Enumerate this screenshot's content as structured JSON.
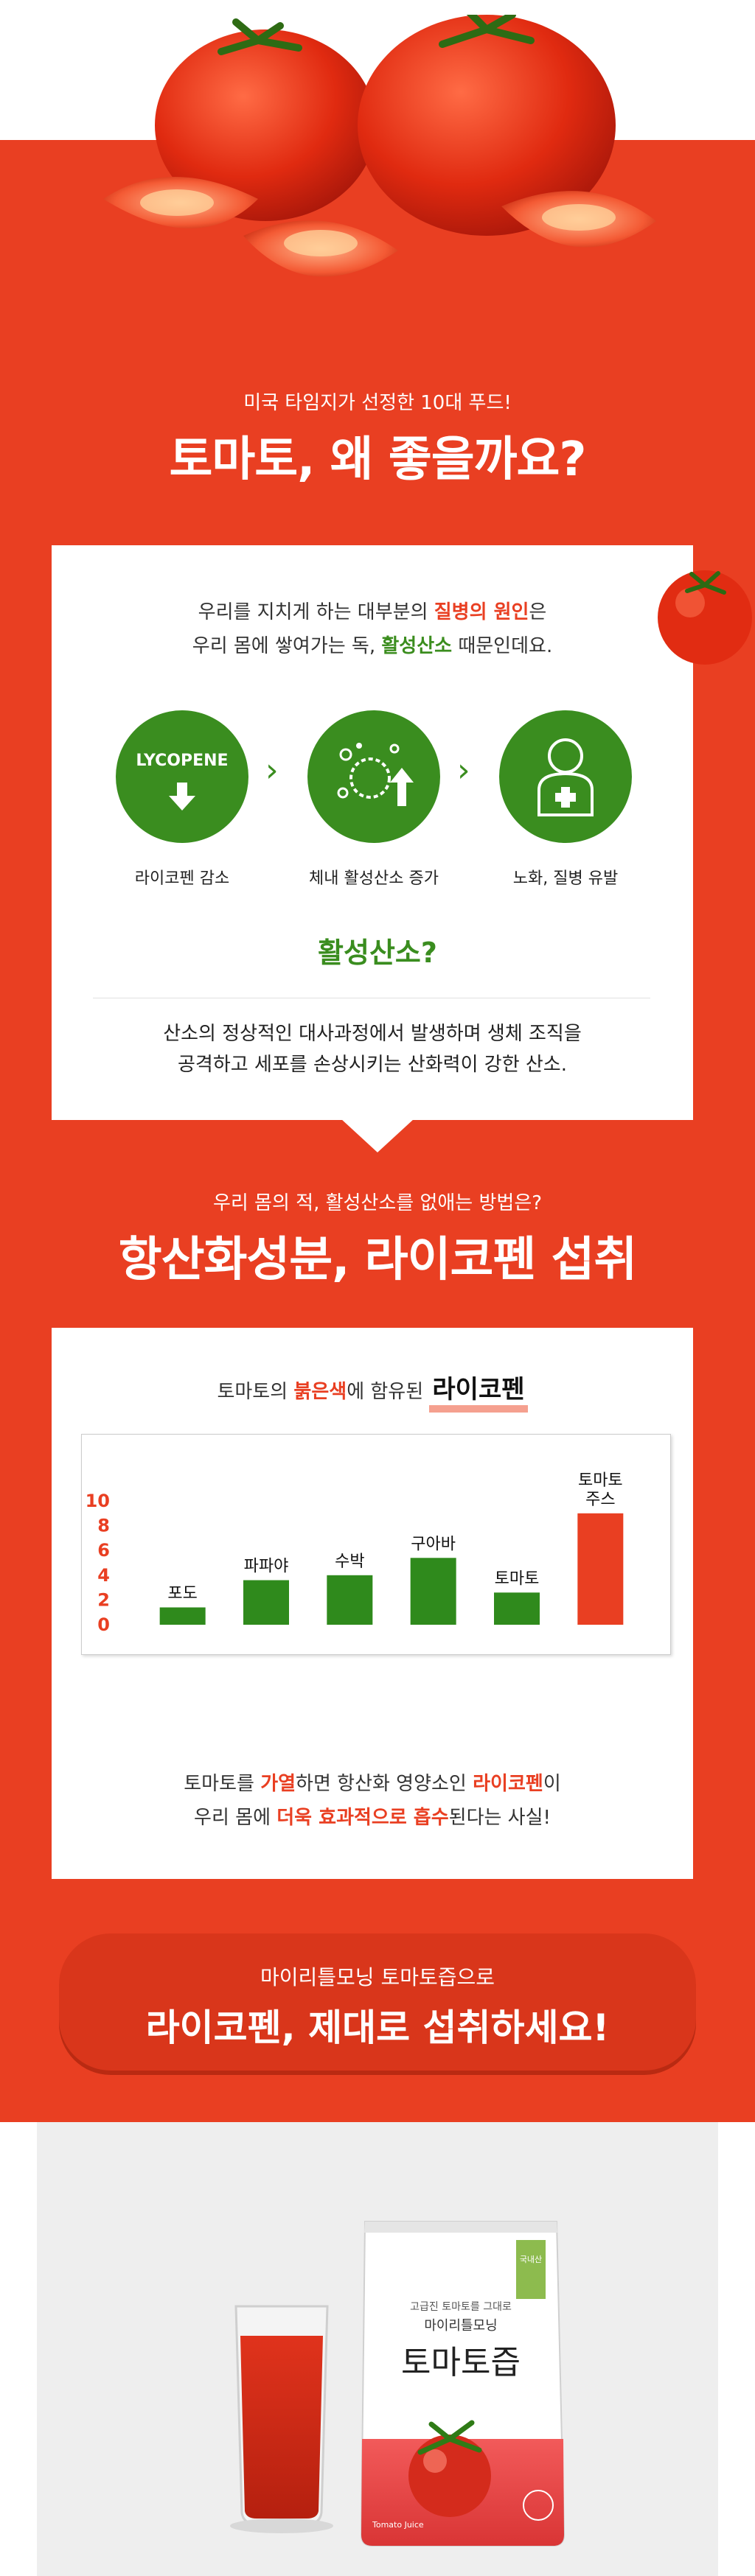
{
  "hero": {
    "kicker": "미국 타임지가 선정한 10대 푸드!",
    "headline": "토마토, 왜 좋을까요?"
  },
  "intro": {
    "line1_pre": "우리를 지치게 하는 대부분의 ",
    "line1_hl": "질병의 원인",
    "line1_post": "은",
    "line2_pre": "우리 몸에 쌓여가는 독, ",
    "line2_hl": "활성산소",
    "line2_post": " 때문인데요."
  },
  "steps": [
    {
      "icon_text": "LYCOPENE",
      "label": "라이코펜 감소"
    },
    {
      "label": "체내 활성산소 증가"
    },
    {
      "label": "노화, 질병 유발"
    }
  ],
  "ros": {
    "title": "활성산소?",
    "line1": "산소의 정상적인 대사과정에서 발생하며 생체 조직을",
    "line2": "공격하고 세포를 손상시키는 산화력이 강한 산소."
  },
  "section2": {
    "kicker": "우리 몸의 적, 활성산소를 없애는 방법은?",
    "headline": "항산화성분, 라이코펜 섭취"
  },
  "lyco": {
    "pre": "토마토의 ",
    "hl": "붉은색",
    "post": "에 함유된 ",
    "tag": "라이코펜"
  },
  "chart_data": {
    "type": "bar",
    "categories": [
      "포도",
      "파파야",
      "수박",
      "구아바",
      "토마토",
      "토마토 주스"
    ],
    "category_lines": [
      [
        "포도"
      ],
      [
        "파파야"
      ],
      [
        "수박"
      ],
      [
        "구아바"
      ],
      [
        "토마토"
      ],
      [
        "토마토",
        "주스"
      ]
    ],
    "values": [
      1.4,
      3.6,
      4.0,
      5.4,
      2.6,
      9.0
    ],
    "yticks": [
      "0",
      "2",
      "4",
      "6",
      "8",
      "10"
    ],
    "ylim": [
      0,
      10
    ],
    "colors": {
      "default": "#2f8a1c",
      "highlight": "#e93f22"
    },
    "highlight_index": 5
  },
  "closing": {
    "line1_pre": "토마토를 ",
    "line1_hl1": "가열",
    "line1_mid": "하면 항산화 영양소인 ",
    "line1_hl2": "라이코펜",
    "line1_post": "이",
    "line2_pre": "우리 몸에 ",
    "line2_hl": "더욱 효과적으로 흡수",
    "line2_post": "된다는 사실!"
  },
  "cta": {
    "kicker": "마이리틀모닝 토마토즙으로",
    "headline": "라이코펜, 제대로 섭취하세요!"
  },
  "product": {
    "top_text": "고급진 토마토를 그대로",
    "brand": "마이리틀모닝",
    "name": "토마토즙",
    "side_badge": "국내산",
    "small1": "Tomato Juice"
  }
}
